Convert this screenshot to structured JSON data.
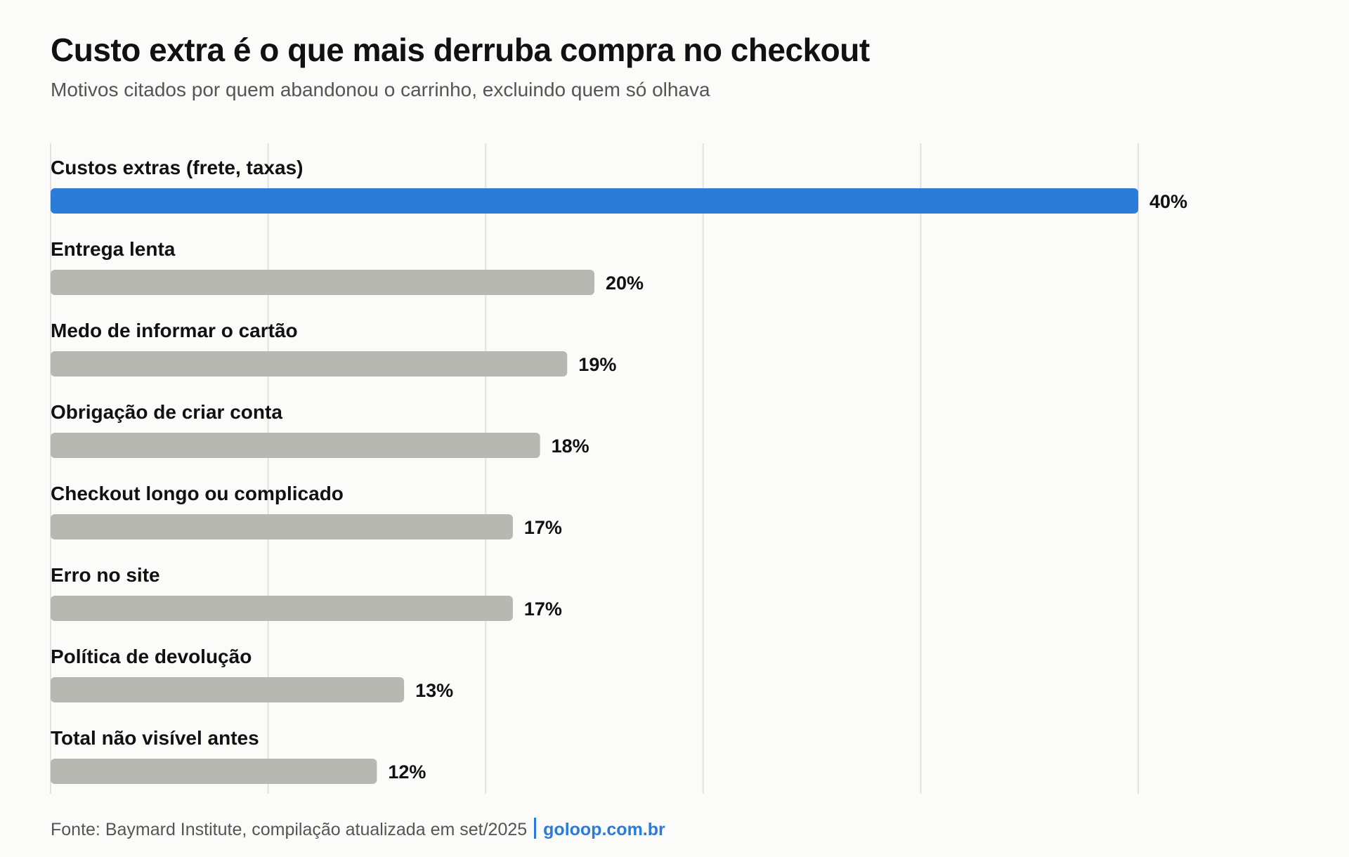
{
  "chart_data": {
    "type": "bar",
    "orientation": "horizontal",
    "title": "Custo extra é o que mais derruba compra no checkout",
    "subtitle": "Motivos citados por quem abandonou o carrinho, excluindo quem só olhava",
    "categories": [
      "Custos extras (frete, taxas)",
      "Entrega lenta",
      "Medo de informar o cartão",
      "Obrigação de criar conta",
      "Checkout longo ou complicado",
      "Erro no site",
      "Política de devolução",
      "Total não visível antes"
    ],
    "values": [
      40,
      20,
      19,
      18,
      17,
      17,
      13,
      12
    ],
    "value_labels": [
      "40%",
      "20%",
      "19%",
      "18%",
      "17%",
      "17%",
      "13%",
      "12%"
    ],
    "unit": "%",
    "xlim": [
      0,
      40
    ],
    "gridlines": [
      0,
      8,
      16,
      24,
      32,
      40
    ],
    "grid": true,
    "highlight_index": 0,
    "colors": {
      "highlight": "#2b7bd9",
      "default": "#b8b8b2",
      "grid": "#e2e2de"
    }
  },
  "footer": {
    "source": "Fonte: Baymard Institute, compilação atualizada em set/2025",
    "brand": "goloop.com.br"
  }
}
